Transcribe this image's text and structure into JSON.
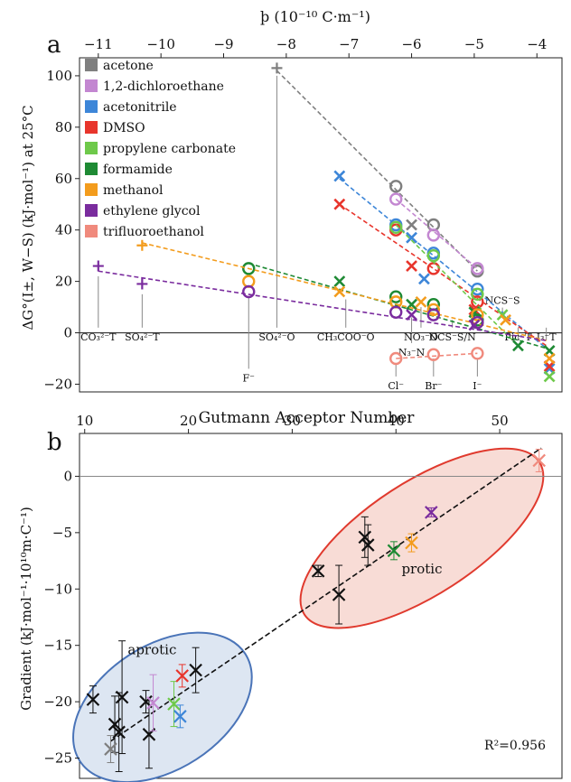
{
  "panel_labels": [
    "a",
    "b"
  ],
  "colors": {
    "acetone": "#7f7f7f",
    "1,2-dichloroethane": "#c387d1",
    "acetonitrile": "#3d86d8",
    "DMSO": "#e8352c",
    "propylene carbonate": "#6ec94a",
    "formamide": "#1e8a34",
    "methanol": "#f39c1d",
    "ethylene glycol": "#7a2c9e",
    "trifluoroethanol": "#f08a7d",
    "black": "#111111",
    "aprotic_fill": "#dde6f2",
    "aprotic_edge": "#4a74b8",
    "protic_fill": "#f8dcd6",
    "protic_edge": "#e03a2e"
  },
  "chart_data": [
    {
      "type": "scatter",
      "panel": "a",
      "xlabel": "þ (10⁻¹⁰ C·m⁻¹)",
      "ylabel": "ΔG°(I±, W−S) (kJ·mol⁻¹) at 25°C",
      "xlim": [
        -11.3,
        -3.6
      ],
      "ylim": [
        -23,
        107
      ],
      "xticks": [
        -11,
        -10,
        -9,
        -8,
        -7,
        -6,
        -5,
        -4
      ],
      "xtick_labels": [
        "−11",
        "−10",
        "−9",
        "−8",
        "−7",
        "−6",
        "−5",
        "−4"
      ],
      "yticks": [
        -20,
        0,
        20,
        40,
        60,
        80,
        100
      ],
      "ytick_labels": [
        "−20",
        "0",
        "20",
        "40",
        "60",
        "80",
        "100"
      ],
      "zero_line": true,
      "legend": {
        "position": "top-left",
        "entries": [
          "acetone",
          "1,2-dichloroethane",
          "acetonitrile",
          "DMSO",
          "propylene carbonate",
          "formamide",
          "methanol",
          "ethylene glycol",
          "trifluoroethanol"
        ]
      },
      "ion_labels": [
        {
          "text": "CO₃²⁻T",
          "x": -11.0,
          "stem_top": 22
        },
        {
          "text": "SO₄²⁻T",
          "x": -10.3,
          "stem_top": 15
        },
        {
          "text": "F⁻",
          "x": -8.6,
          "stem_top": 14,
          "below": true
        },
        {
          "text": "SO₄²⁻O",
          "x": -8.15,
          "stem_top": 100
        },
        {
          "text": "CH₃COO⁻O",
          "x": -7.05,
          "stem_top": 13
        },
        {
          "text": "N₃⁻N",
          "x": -6.0,
          "stem_top": 6,
          "below": true
        },
        {
          "text": "NO₃⁻O",
          "x": -5.85,
          "stem_top": 10
        },
        {
          "text": "NCS⁻S/N",
          "x": -5.35,
          "stem_top": 5
        },
        {
          "text": "NCS⁻S",
          "x": -4.55,
          "stem_top": 7,
          "above": true
        },
        {
          "text": "Pic⁻T",
          "x": -4.3,
          "stem_top": -3
        },
        {
          "text": "I₃⁻T",
          "x": -3.85,
          "stem_top": -3
        },
        {
          "text": "Cl⁻",
          "x": -6.25,
          "stem_top": -12,
          "below": true
        },
        {
          "text": "Br⁻",
          "x": -5.65,
          "stem_top": -10,
          "below": true
        },
        {
          "text": "I⁻",
          "x": -4.95,
          "stem_top": -10,
          "below": true
        }
      ],
      "series": [
        {
          "name": "acetone",
          "fit": [
            [
              -8.15,
              102
            ],
            [
              -4.95,
              24
            ]
          ],
          "circles": [
            [
              -6.25,
              57
            ],
            [
              -5.65,
              42
            ],
            [
              -4.95,
              24
            ]
          ],
          "crosses": [
            [
              -6.0,
              42
            ]
          ],
          "pluses": [
            [
              -8.15,
              103
            ]
          ]
        },
        {
          "name": "1,2-dichloroethane",
          "fit": [
            [
              -6.25,
              52
            ],
            [
              -4.95,
              25
            ]
          ],
          "circles": [
            [
              -6.25,
              52
            ],
            [
              -5.65,
              38
            ],
            [
              -4.95,
              25
            ]
          ],
          "crosses": [],
          "pluses": []
        },
        {
          "name": "acetonitrile",
          "fit": [
            [
              -7.15,
              60
            ],
            [
              -3.85,
              -6
            ]
          ],
          "circles": [
            [
              -6.25,
              42
            ],
            [
              -5.65,
              31
            ],
            [
              -4.95,
              17
            ]
          ],
          "crosses": [
            [
              -7.15,
              61
            ],
            [
              -6.0,
              37
            ],
            [
              -5.8,
              21
            ],
            [
              -3.8,
              -14
            ]
          ],
          "pluses": []
        },
        {
          "name": "DMSO",
          "fit": [
            [
              -7.15,
              50
            ],
            [
              -3.85,
              -5
            ]
          ],
          "circles": [
            [
              -6.25,
              40
            ],
            [
              -5.65,
              25
            ],
            [
              -4.95,
              12
            ]
          ],
          "crosses": [
            [
              -7.15,
              50
            ],
            [
              -6.0,
              26
            ],
            [
              -5.0,
              9
            ],
            [
              -3.8,
              -13
            ]
          ],
          "pluses": []
        },
        {
          "name": "propylene carbonate",
          "fit": [
            [
              -6.25,
              42
            ],
            [
              -4.3,
              -5
            ]
          ],
          "circles": [
            [
              -6.25,
              41
            ],
            [
              -5.65,
              30
            ],
            [
              -4.95,
              15
            ]
          ],
          "crosses": [
            [
              -4.55,
              7
            ],
            [
              -3.8,
              -17
            ]
          ],
          "pluses": []
        },
        {
          "name": "formamide",
          "fit": [
            [
              -8.6,
              27
            ],
            [
              -3.85,
              -6
            ]
          ],
          "circles": [
            [
              -8.6,
              25
            ],
            [
              -6.25,
              14
            ],
            [
              -5.65,
              11
            ],
            [
              -4.95,
              5
            ]
          ],
          "crosses": [
            [
              -7.15,
              20
            ],
            [
              -6.0,
              11
            ],
            [
              -5.0,
              8
            ],
            [
              -4.3,
              -5
            ],
            [
              -3.8,
              -7
            ]
          ],
          "pluses": []
        },
        {
          "name": "methanol",
          "fit": [
            [
              -10.3,
              35
            ],
            [
              -3.85,
              -3
            ]
          ],
          "circles": [
            [
              -8.6,
              20
            ],
            [
              -6.25,
              12
            ],
            [
              -5.65,
              9
            ],
            [
              -4.95,
              7
            ]
          ],
          "crosses": [
            [
              -7.15,
              16
            ],
            [
              -5.85,
              12
            ],
            [
              -4.5,
              5
            ],
            [
              -3.8,
              -10
            ]
          ],
          "pluses": [
            [
              -10.3,
              34
            ]
          ]
        },
        {
          "name": "ethylene glycol",
          "fit": [
            [
              -11.0,
              24
            ],
            [
              -3.85,
              -3
            ]
          ],
          "circles": [
            [
              -8.6,
              16
            ],
            [
              -6.25,
              8
            ],
            [
              -5.65,
              7
            ],
            [
              -4.95,
              4
            ]
          ],
          "crosses": [
            [
              -6.0,
              7
            ],
            [
              -5.0,
              3
            ]
          ],
          "pluses": [
            [
              -11.0,
              26
            ],
            [
              -10.3,
              19
            ]
          ]
        },
        {
          "name": "trifluoroethanol",
          "fit": [
            [
              -6.25,
              -10
            ],
            [
              -4.95,
              -8
            ]
          ],
          "circles": [
            [
              -6.25,
              -10
            ],
            [
              -5.65,
              -8.5
            ],
            [
              -4.95,
              -8
            ]
          ],
          "crosses": [],
          "pluses": []
        }
      ]
    },
    {
      "type": "scatter",
      "panel": "b",
      "xlabel": "Gutmann Acceptor Number",
      "ylabel": "Gradient (kJ·mol⁻¹·10¹⁰m·C⁻¹)",
      "xlim": [
        9.5,
        56
      ],
      "ylim": [
        -26.8,
        3.8
      ],
      "xticks": [
        10,
        20,
        30,
        40,
        50
      ],
      "xtick_labels": [
        "10",
        "20",
        "30",
        "40",
        "50"
      ],
      "yticks": [
        -25,
        -20,
        -15,
        -10,
        -5,
        0
      ],
      "ytick_labels": [
        "−25",
        "−20",
        "−15",
        "−10",
        "−5",
        "0"
      ],
      "zero_line": true,
      "fit_line": [
        [
          12.5,
          -23.5
        ],
        [
          54.0,
          2.5
        ]
      ],
      "r_squared_label": "R²=0.956",
      "groups": [
        {
          "label": "aprotic",
          "ellipse": {
            "cx": 17.5,
            "cy": -20.5,
            "rx": 9.5,
            "ry": 5.5,
            "angle": -33
          }
        },
        {
          "label": "protic",
          "ellipse": {
            "cx": 42.5,
            "cy": -5.5,
            "rx": 13.5,
            "ry": 5.0,
            "angle": -33
          }
        }
      ],
      "points": [
        {
          "x": 10.8,
          "y": -19.8,
          "err": 1.2,
          "color": "black"
        },
        {
          "x": 12.9,
          "y": -22.0,
          "err": 2.5,
          "color": "black"
        },
        {
          "x": 13.3,
          "y": -22.7,
          "err": 3.5,
          "color": "black"
        },
        {
          "x": 13.6,
          "y": -19.6,
          "err": 5.0,
          "color": "black"
        },
        {
          "x": 12.5,
          "y": -24.2,
          "err": 1.2,
          "color": "acetone"
        },
        {
          "x": 15.9,
          "y": -20.0,
          "err": 1.0,
          "color": "black"
        },
        {
          "x": 16.2,
          "y": -22.9,
          "err": 3.0,
          "color": "black"
        },
        {
          "x": 16.6,
          "y": -20.1,
          "err": 2.5,
          "color": "1,2-dichloroethane"
        },
        {
          "x": 18.6,
          "y": -20.2,
          "err": 2.0,
          "color": "propylene carbonate"
        },
        {
          "x": 19.2,
          "y": -21.3,
          "err": 1.0,
          "color": "acetonitrile"
        },
        {
          "x": 19.4,
          "y": -17.7,
          "err": 1.0,
          "color": "DMSO"
        },
        {
          "x": 20.7,
          "y": -17.2,
          "err": 2.0,
          "color": "black"
        },
        {
          "x": 32.5,
          "y": -8.4,
          "err": 0.5,
          "color": "black"
        },
        {
          "x": 34.5,
          "y": -10.5,
          "err": 2.6,
          "color": "black"
        },
        {
          "x": 37.0,
          "y": -5.4,
          "err": 1.8,
          "color": "black"
        },
        {
          "x": 37.3,
          "y": -6.1,
          "err": 1.8,
          "color": "black"
        },
        {
          "x": 39.8,
          "y": -6.6,
          "err": 0.8,
          "color": "formamide"
        },
        {
          "x": 41.5,
          "y": -5.9,
          "err": 0.8,
          "color": "methanol"
        },
        {
          "x": 43.4,
          "y": -3.2,
          "err": 0.4,
          "color": "ethylene glycol"
        },
        {
          "x": 53.8,
          "y": 1.4,
          "err": 1.0,
          "color": "trifluoroethanol"
        }
      ]
    }
  ]
}
